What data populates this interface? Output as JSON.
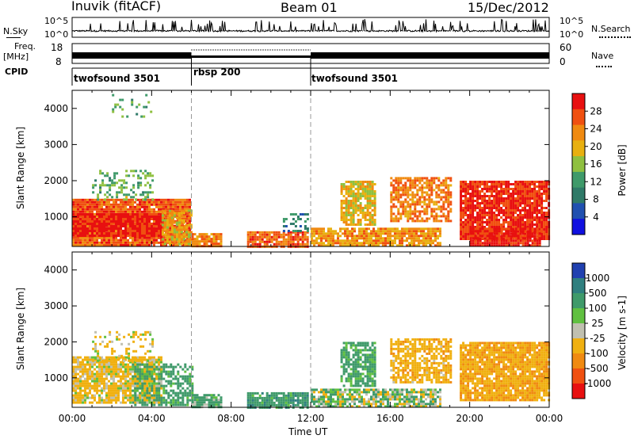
{
  "header": {
    "station": "Inuvik (fitACF)",
    "beam": "Beam 01",
    "date": "15/Dec/2012"
  },
  "strip_panels": {
    "nsky": {
      "label": "N.Sky",
      "ticks": [
        "10^5",
        "10^0"
      ],
      "right_ticks": [
        "10^5",
        "10^0"
      ],
      "right_label": "N.Search"
    },
    "freq": {
      "label_line1": "Freq.",
      "label_line2": "[MHz]",
      "ticks": [
        "18",
        "8"
      ],
      "right_ticks": [
        "60",
        "0"
      ],
      "right_label": "Nave"
    },
    "cpid": {
      "label": "CPID",
      "segments": [
        {
          "name": "twofsound 3501",
          "start_hr": 0,
          "end_hr": 6
        },
        {
          "name": "rbsp 200",
          "start_hr": 6,
          "end_hr": 12
        },
        {
          "name": "twofsound 3501",
          "start_hr": 12,
          "end_hr": 24
        }
      ]
    }
  },
  "chart_data": [
    {
      "type": "heatmap",
      "name": "power",
      "ylabel": "Slant Range [km]",
      "xlim": [
        0,
        24
      ],
      "ylim": [
        180,
        4500
      ],
      "yticks": [
        {
          "v": 1000,
          "label": "1000"
        },
        {
          "v": 2000,
          "label": "2000"
        },
        {
          "v": 3000,
          "label": "3000"
        },
        {
          "v": 4000,
          "label": "4000"
        }
      ],
      "colorbar": {
        "label": "Power [dB]",
        "ticks": [
          {
            "v": 4,
            "label": "4"
          },
          {
            "v": 8,
            "label": "8"
          },
          {
            "v": 12,
            "label": "12"
          },
          {
            "v": 16,
            "label": "16"
          },
          {
            "v": 20,
            "label": "20"
          },
          {
            "v": 24,
            "label": "24"
          },
          {
            "v": 28,
            "label": "28"
          }
        ],
        "range": [
          0,
          32
        ],
        "colors": [
          "#1010e0",
          "#2050b0",
          "#2f7a68",
          "#3f9a6a",
          "#8fc040",
          "#e8b010",
          "#f08a10",
          "#f05010",
          "#e81010"
        ]
      },
      "blobs": [
        {
          "t0": 0.0,
          "t1": 5.9,
          "r0": 200,
          "r1": 1500,
          "v": 26,
          "d": 0.95
        },
        {
          "t0": 0.0,
          "t1": 4.5,
          "r0": 500,
          "r1": 1100,
          "v": 30,
          "d": 0.95
        },
        {
          "t0": 1.0,
          "t1": 4.0,
          "r0": 1500,
          "r1": 2300,
          "v": 14,
          "d": 0.3
        },
        {
          "t0": 2.0,
          "t1": 4.0,
          "r0": 3800,
          "r1": 4400,
          "v": 14,
          "d": 0.15
        },
        {
          "t0": 4.5,
          "t1": 6.0,
          "r0": 250,
          "r1": 1200,
          "v": 20,
          "d": 0.7
        },
        {
          "t0": 6.0,
          "t1": 7.5,
          "r0": 200,
          "r1": 550,
          "v": 24,
          "d": 0.9
        },
        {
          "t0": 8.8,
          "t1": 11.8,
          "r0": 200,
          "r1": 600,
          "v": 26,
          "d": 0.9
        },
        {
          "t0": 10.6,
          "t1": 11.8,
          "r0": 600,
          "r1": 1100,
          "v": 10,
          "d": 0.3
        },
        {
          "t0": 12.0,
          "t1": 18.5,
          "r0": 200,
          "r1": 700,
          "v": 22,
          "d": 0.85
        },
        {
          "t0": 13.5,
          "t1": 15.2,
          "r0": 800,
          "r1": 2000,
          "v": 20,
          "d": 0.75
        },
        {
          "t0": 16.0,
          "t1": 19.0,
          "r0": 900,
          "r1": 2100,
          "v": 24,
          "d": 0.7
        },
        {
          "t0": 19.5,
          "t1": 24.0,
          "r0": 400,
          "r1": 2000,
          "v": 29,
          "d": 0.9
        },
        {
          "t0": 20.0,
          "t1": 23.5,
          "r0": 200,
          "r1": 700,
          "v": 30,
          "d": 0.9
        }
      ]
    },
    {
      "type": "heatmap",
      "name": "velocity",
      "ylabel": "Slant Range [km]",
      "xlabel": "Time UT",
      "xlim": [
        0,
        24
      ],
      "ylim": [
        180,
        4500
      ],
      "yticks": [
        {
          "v": 1000,
          "label": "1000"
        },
        {
          "v": 2000,
          "label": "2000"
        },
        {
          "v": 3000,
          "label": "3000"
        },
        {
          "v": 4000,
          "label": "4000"
        }
      ],
      "xticks": [
        {
          "v": 0,
          "label": "00:00"
        },
        {
          "v": 4,
          "label": "04:00"
        },
        {
          "v": 8,
          "label": "08:00"
        },
        {
          "v": 12,
          "label": "12:00"
        },
        {
          "v": 16,
          "label": "16:00"
        },
        {
          "v": 20,
          "label": "20:00"
        },
        {
          "v": 24,
          "label": "00:00"
        }
      ],
      "colorbar": {
        "label": "Velocity [m s-1]",
        "ticks": [
          {
            "v": 1000,
            "label": "1000"
          },
          {
            "v": 500,
            "label": "500"
          },
          {
            "v": 100,
            "label": "100"
          },
          {
            "v": 25,
            "label": "25"
          },
          {
            "v": -25,
            "label": "-25"
          },
          {
            "v": -100,
            "label": "-100"
          },
          {
            "v": -500,
            "label": "-500"
          },
          {
            "v": -1000,
            "label": "-1000"
          }
        ],
        "colors": [
          "#2040b0",
          "#2f7f7f",
          "#3f9a6a",
          "#60c040",
          "#c0c0b0",
          "#f0b010",
          "#f08a10",
          "#f05010",
          "#e81010"
        ]
      },
      "blobs": [
        {
          "t0": 0.0,
          "t1": 4.5,
          "r0": 300,
          "r1": 1600,
          "v": -120,
          "d": 0.85
        },
        {
          "t0": 3.0,
          "t1": 6.0,
          "r0": 250,
          "r1": 1400,
          "v": 150,
          "d": 0.6
        },
        {
          "t0": 1.0,
          "t1": 4.0,
          "r0": 1500,
          "r1": 2300,
          "v": -110,
          "d": 0.3
        },
        {
          "t0": 6.0,
          "t1": 7.5,
          "r0": 200,
          "r1": 550,
          "v": 120,
          "d": 0.85
        },
        {
          "t0": 8.8,
          "t1": 11.8,
          "r0": 200,
          "r1": 600,
          "v": 200,
          "d": 0.85
        },
        {
          "t0": 12.0,
          "t1": 18.5,
          "r0": 200,
          "r1": 700,
          "v": 30,
          "d": 0.8
        },
        {
          "t0": 13.5,
          "t1": 15.2,
          "r0": 800,
          "r1": 2000,
          "v": 150,
          "d": 0.75
        },
        {
          "t0": 16.0,
          "t1": 19.0,
          "r0": 900,
          "r1": 2100,
          "v": -200,
          "d": 0.7
        },
        {
          "t0": 19.5,
          "t1": 24.0,
          "r0": 400,
          "r1": 2000,
          "v": -250,
          "d": 0.9
        }
      ]
    }
  ]
}
